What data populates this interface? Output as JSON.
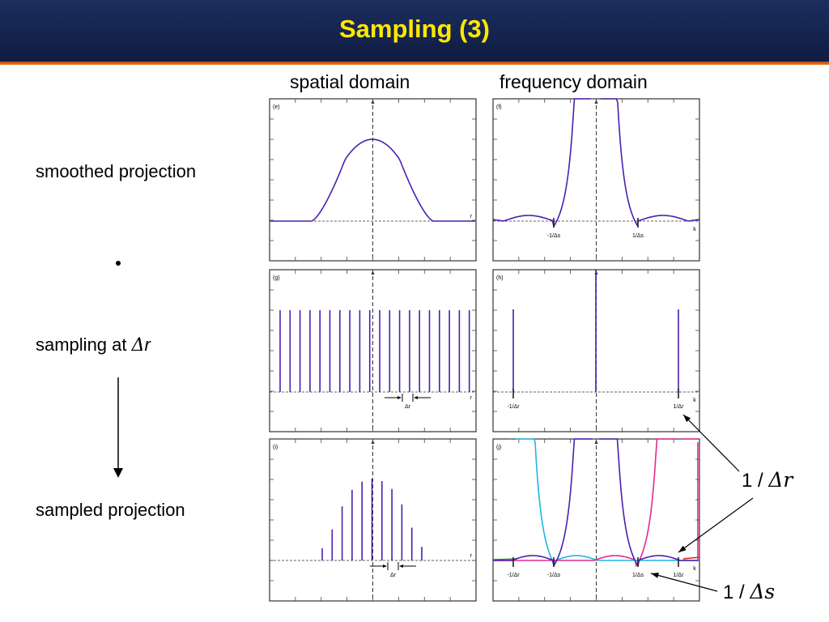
{
  "slide": {
    "title": "Sampling (3)"
  },
  "columns": {
    "spatial": "spatial domain",
    "frequency": "frequency domain"
  },
  "rows": {
    "smoothed": "smoothed projection",
    "sampling_prefix": "sampling at ",
    "sampling_symbol": "Δ",
    "sampling_var": "r",
    "sampled": "sampled projection",
    "multiply_symbol": "•"
  },
  "panels": {
    "e": {
      "tag": "(e)",
      "axis": "r"
    },
    "f": {
      "tag": "(f)",
      "axis": "k",
      "ticks": [
        "-1/Δs",
        "1/Δs"
      ]
    },
    "g": {
      "tag": "(g)",
      "axis": "r",
      "spacing": "Δr"
    },
    "h": {
      "tag": "(h)",
      "axis": "k",
      "ticks": [
        "-1/Δr",
        "1/Δr"
      ]
    },
    "i": {
      "tag": "(i)",
      "axis": "r",
      "spacing": "Δr"
    },
    "j": {
      "tag": "(j)",
      "axis": "k",
      "ticks": [
        "-1/Δr",
        "-1/Δs",
        "1/Δs",
        "1/Δr"
      ]
    }
  },
  "callouts": {
    "dr_prefix": "1 / ",
    "dr_symbol": "Δr",
    "ds_prefix": "1 / ",
    "ds_symbol": "Δs"
  },
  "colors": {
    "header_bg": "#15244f",
    "title": "#ffe800",
    "header_rule": "#e0701a",
    "curve": "#4b1fb0",
    "alias_left": "#22b3e6",
    "alias_right": "#e02a8c",
    "alias_red": "#d42020",
    "alias_green": "#2a8a3a"
  }
}
